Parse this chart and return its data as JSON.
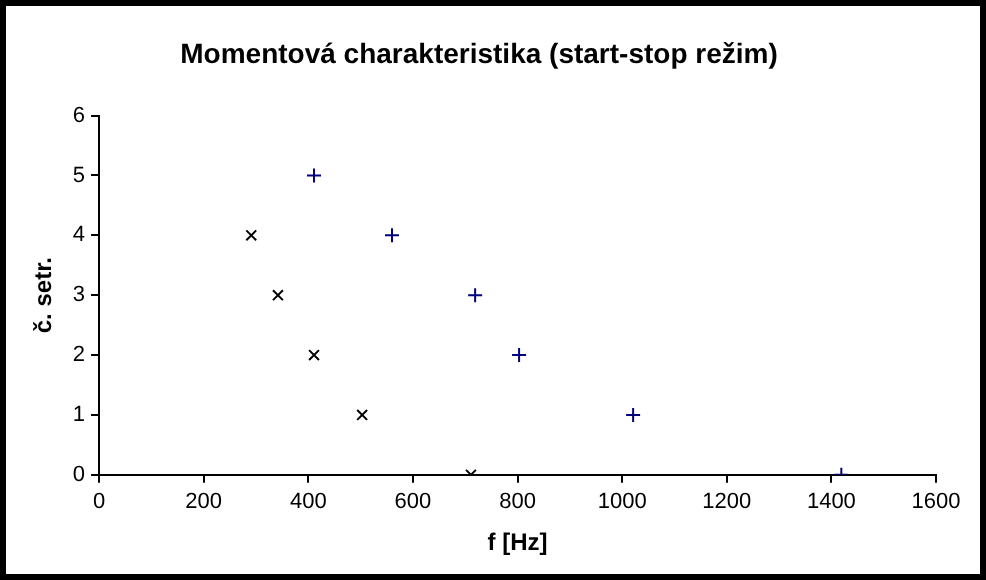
{
  "chart_data": {
    "type": "scatter",
    "title": "Momentová charakteristika (start-stop režim)",
    "xlabel": "f [Hz]",
    "ylabel": "č. setr.",
    "series": [
      {
        "color": "#000000",
        "marker": "x",
        "x": [
          291,
          342,
          411,
          503,
          711
        ],
        "values": [
          4,
          3,
          2,
          1,
          0
        ]
      },
      {
        "color": "#000080",
        "marker": "cross",
        "x": [
          411,
          560,
          719,
          803,
          1021,
          1419
        ],
        "values": [
          5,
          4,
          3,
          2,
          1,
          0
        ]
      }
    ],
    "xlim": [
      0,
      1600
    ],
    "xticks": [
      0,
      200,
      400,
      600,
      800,
      1000,
      1200,
      1400,
      1600
    ],
    "ylim": [
      0,
      6
    ],
    "yticks": [
      0,
      1,
      2,
      3,
      4,
      5,
      6
    ],
    "grid": false,
    "legend": false
  }
}
